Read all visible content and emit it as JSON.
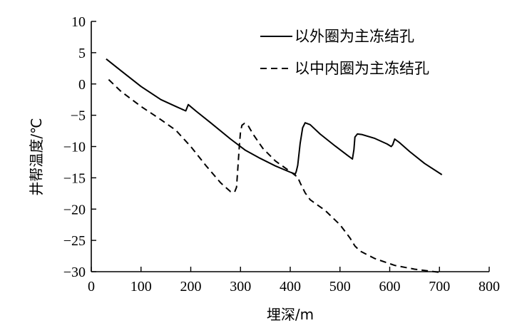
{
  "chart_data": {
    "type": "line",
    "xlabel": "埋深/m",
    "ylabel": "井帮温度/℃",
    "xlim": [
      0,
      800
    ],
    "ylim": [
      -30,
      10
    ],
    "xticks": [
      0,
      100,
      200,
      300,
      400,
      500,
      600,
      700,
      800
    ],
    "yticks": [
      10,
      5,
      0,
      -5,
      -10,
      -15,
      -20,
      -25,
      -30
    ],
    "grid": false,
    "legend_position": "top-right",
    "series": [
      {
        "name": "以外圈为主冻结孔",
        "style": "solid",
        "color": "#000000",
        "x": [
          30,
          60,
          100,
          140,
          170,
          190,
          195,
          210,
          240,
          280,
          310,
          340,
          370,
          400,
          410,
          412,
          415,
          420,
          425,
          430,
          440,
          460,
          490,
          515,
          525,
          528,
          530,
          535,
          545,
          570,
          595,
          603,
          606,
          610,
          620,
          640,
          670,
          705
        ],
        "y": [
          4.0,
          2.1,
          -0.4,
          -2.5,
          -3.6,
          -4.3,
          -3.3,
          -4.3,
          -6.2,
          -8.8,
          -10.6,
          -11.9,
          -13.1,
          -14.1,
          -14.4,
          -14.0,
          -13.0,
          -9.5,
          -7.0,
          -6.2,
          -6.5,
          -8.0,
          -9.9,
          -11.4,
          -12.0,
          -10.5,
          -8.5,
          -8.0,
          -8.1,
          -8.7,
          -9.6,
          -10.0,
          -9.7,
          -8.8,
          -9.4,
          -10.8,
          -12.7,
          -14.5
        ]
      },
      {
        "name": "以中内圈为主冻结孔",
        "style": "dashed",
        "color": "#000000",
        "x": [
          35,
          60,
          100,
          140,
          170,
          200,
          230,
          260,
          280,
          288,
          292,
          295,
          298,
          300,
          303,
          308,
          315,
          325,
          345,
          370,
          400,
          415,
          420,
          430,
          440,
          470,
          500,
          520,
          530,
          540,
          570,
          610,
          650,
          700
        ],
        "y": [
          0.7,
          -1.2,
          -3.6,
          -5.7,
          -7.4,
          -10.0,
          -13.0,
          -15.8,
          -17.2,
          -17.3,
          -16.5,
          -13.0,
          -9.5,
          -7.6,
          -6.6,
          -6.3,
          -6.6,
          -8.0,
          -10.3,
          -12.3,
          -14.0,
          -14.9,
          -15.8,
          -17.4,
          -18.5,
          -20.2,
          -22.5,
          -24.6,
          -25.9,
          -26.7,
          -27.9,
          -29.0,
          -29.6,
          -30.1
        ]
      }
    ]
  }
}
